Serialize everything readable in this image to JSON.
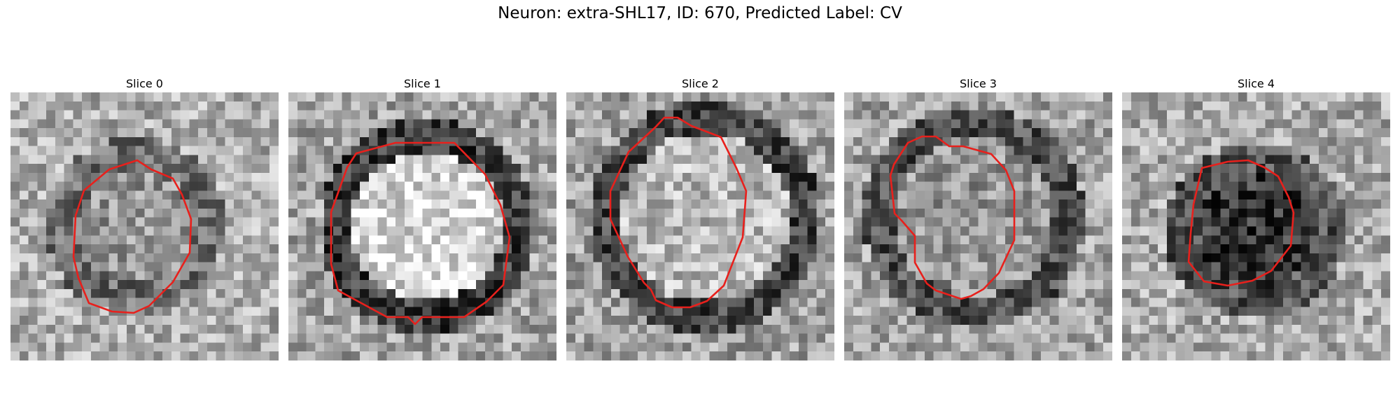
{
  "figure": {
    "title": "Neuron: extra-SHL17, ID: 670, Predicted Label: CV"
  },
  "panels": [
    {
      "label": "Slice 0"
    },
    {
      "label": "Slice 1"
    },
    {
      "label": "Slice 2"
    },
    {
      "label": "Slice 3"
    },
    {
      "label": "Slice 4"
    }
  ],
  "colors": {
    "contour": "#e8201c",
    "background": "#ffffff"
  }
}
